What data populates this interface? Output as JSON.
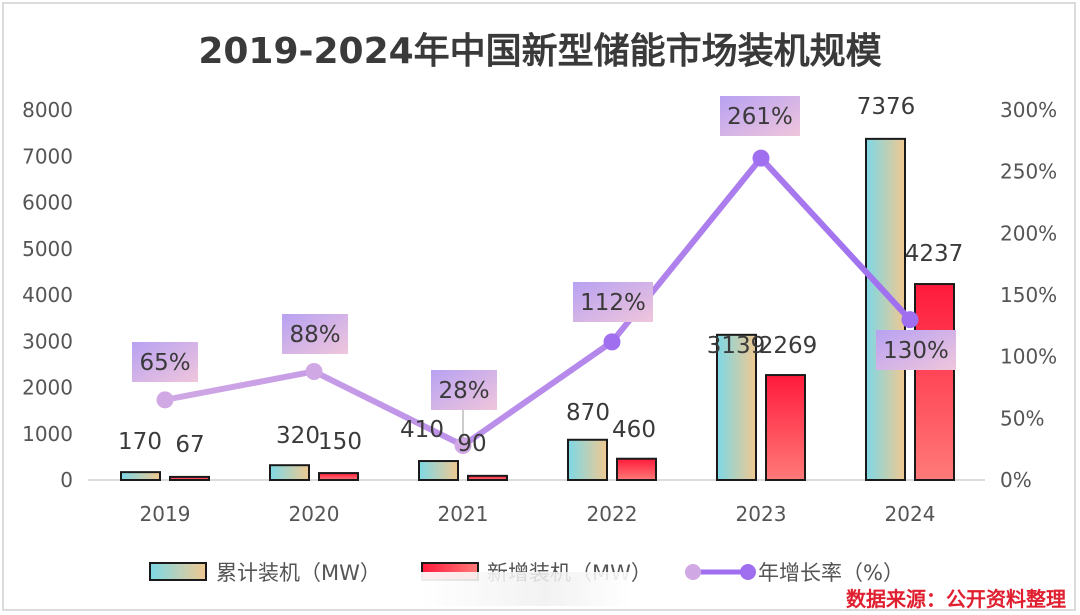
{
  "chart_data": {
    "type": "bar",
    "title": "2019-2024年中国新型储能市场装机规模",
    "categories": [
      "2019",
      "2020",
      "2021",
      "2022",
      "2023",
      "2024"
    ],
    "series": [
      {
        "name": "累计装机（MW）",
        "type": "bar",
        "axis": "left",
        "values": [
          170,
          320,
          410,
          870,
          3139,
          7376
        ]
      },
      {
        "name": "新增装机（MW）",
        "type": "bar",
        "axis": "left",
        "values": [
          67,
          150,
          90,
          460,
          2269,
          4237
        ]
      },
      {
        "name": "年增长率（%）",
        "type": "line",
        "axis": "right",
        "values": [
          65,
          88,
          28,
          112,
          261,
          130
        ]
      }
    ],
    "left_axis": {
      "ylim": [
        0,
        8000
      ],
      "ticks": [
        0,
        1000,
        2000,
        3000,
        4000,
        5000,
        6000,
        7000,
        8000
      ]
    },
    "right_axis": {
      "ylim": [
        0,
        300
      ],
      "ticks": [
        "0%",
        "50%",
        "100%",
        "150%",
        "200%",
        "250%",
        "300%"
      ],
      "tick_values": [
        0,
        50,
        100,
        150,
        200,
        250,
        300
      ]
    },
    "bar_labels": {
      "cumulative": [
        "170",
        "320",
        "410",
        "870",
        "3139",
        "7376"
      ],
      "new": [
        "67",
        "150",
        "90",
        "460",
        "2269",
        "4237"
      ]
    },
    "line_labels": [
      "65%",
      "88%",
      "28%",
      "112%",
      "261%",
      "130%"
    ],
    "xlabel": "",
    "ylabel": "",
    "grid": false,
    "legend_position": "bottom"
  },
  "colors": {
    "cumulative_bar_left": "#7dd8e6",
    "cumulative_bar_right": "#f0c890",
    "new_bar_top": "#ff1a3c",
    "new_bar_bottom": "#ff7a78",
    "line_start": "#d0a8e4",
    "line_end": "#9f6ff0",
    "label_box_start": "#b7a1f2",
    "label_box_end": "#f0c6dc",
    "source_text": "#e02030"
  },
  "source": "数据来源：公开资料整理"
}
